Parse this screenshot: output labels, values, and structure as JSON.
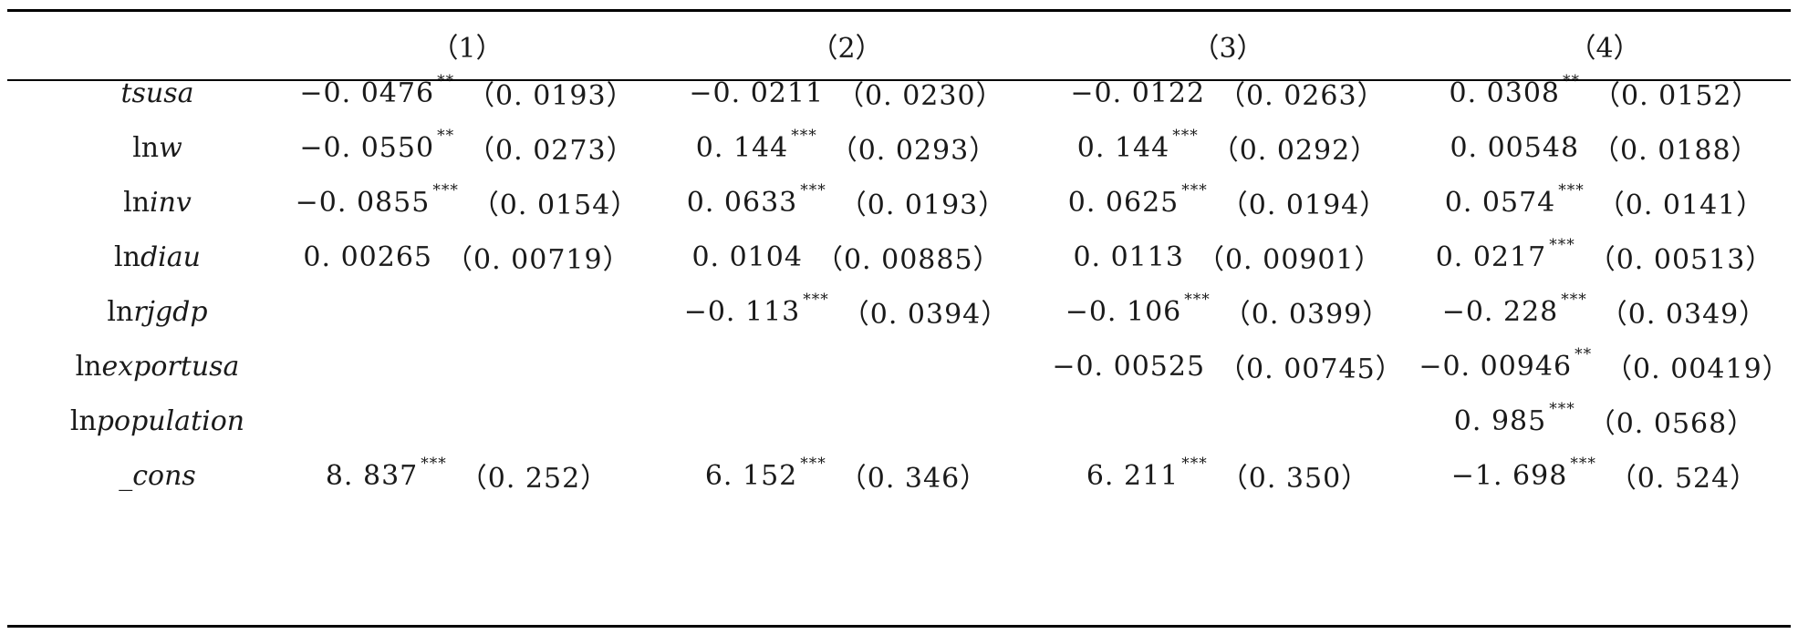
{
  "columns": [
    "（1）",
    "（2）",
    "（3）",
    "（4）"
  ],
  "rows": [
    {
      "label_prefix": "",
      "label_italic": "tsusa",
      "cells": [
        {
          "coef": "−0. 0476",
          "stars": "**",
          "se": "（0. 0193）"
        },
        {
          "coef": "−0. 0211",
          "stars": "",
          "se": "（0. 0230）"
        },
        {
          "coef": "−0. 0122",
          "stars": "",
          "se": "（0. 0263）"
        },
        {
          "coef": "0. 0308",
          "stars": "**",
          "se": "（0. 0152）"
        }
      ]
    },
    {
      "label_prefix": "ln",
      "label_italic": "w",
      "cells": [
        {
          "coef": "−0. 0550",
          "stars": "**",
          "se": "（0. 0273）"
        },
        {
          "coef": "0. 144",
          "stars": "***",
          "se": "（0. 0293）"
        },
        {
          "coef": "0. 144",
          "stars": "***",
          "se": "（0. 0292）"
        },
        {
          "coef": "0. 00548",
          "stars": "",
          "se": "（0. 0188）"
        }
      ]
    },
    {
      "label_prefix": "ln",
      "label_italic": "inv",
      "cells": [
        {
          "coef": "−0. 0855",
          "stars": "***",
          "se": "（0. 0154）"
        },
        {
          "coef": "0. 0633",
          "stars": "***",
          "se": "（0. 0193）"
        },
        {
          "coef": "0. 0625",
          "stars": "***",
          "se": "（0. 0194）"
        },
        {
          "coef": "0. 0574",
          "stars": "***",
          "se": "（0. 0141）"
        }
      ]
    },
    {
      "label_prefix": "ln",
      "label_italic": "diau",
      "cells": [
        {
          "coef": "0. 00265",
          "stars": "",
          "se": "（0. 00719）"
        },
        {
          "coef": "0. 0104",
          "stars": "",
          "se": "（0. 00885）"
        },
        {
          "coef": "0. 0113",
          "stars": "",
          "se": "（0. 00901）"
        },
        {
          "coef": "0. 0217",
          "stars": "***",
          "se": "（0. 00513）"
        }
      ]
    },
    {
      "label_prefix": "ln",
      "label_italic": "rjgdp",
      "cells": [
        null,
        {
          "coef": "−0. 113",
          "stars": "***",
          "se": "（0. 0394）"
        },
        {
          "coef": "−0. 106",
          "stars": "***",
          "se": "（0. 0399）"
        },
        {
          "coef": "−0. 228",
          "stars": "***",
          "se": "（0. 0349）"
        }
      ]
    },
    {
      "label_prefix": "ln",
      "label_italic": "exportusa",
      "cells": [
        null,
        null,
        {
          "coef": "−0. 00525",
          "stars": "",
          "se": "（0. 00745）"
        },
        {
          "coef": "−0. 00946",
          "stars": "**",
          "se": "（0. 00419）"
        }
      ]
    },
    {
      "label_prefix": "ln",
      "label_italic": "population",
      "cells": [
        null,
        null,
        null,
        {
          "coef": "0. 985",
          "stars": "***",
          "se": "（0. 0568）"
        }
      ]
    },
    {
      "label_prefix": "",
      "label_italic": "_cons",
      "cells": [
        {
          "coef": "8. 837",
          "stars": "***",
          "se": "（0. 252）"
        },
        {
          "coef": "6. 152",
          "stars": "***",
          "se": "（0. 346）"
        },
        {
          "coef": "6. 211",
          "stars": "***",
          "se": "（0. 350）"
        },
        {
          "coef": "−1. 698",
          "stars": "***",
          "se": "（0. 524）"
        }
      ]
    }
  ]
}
